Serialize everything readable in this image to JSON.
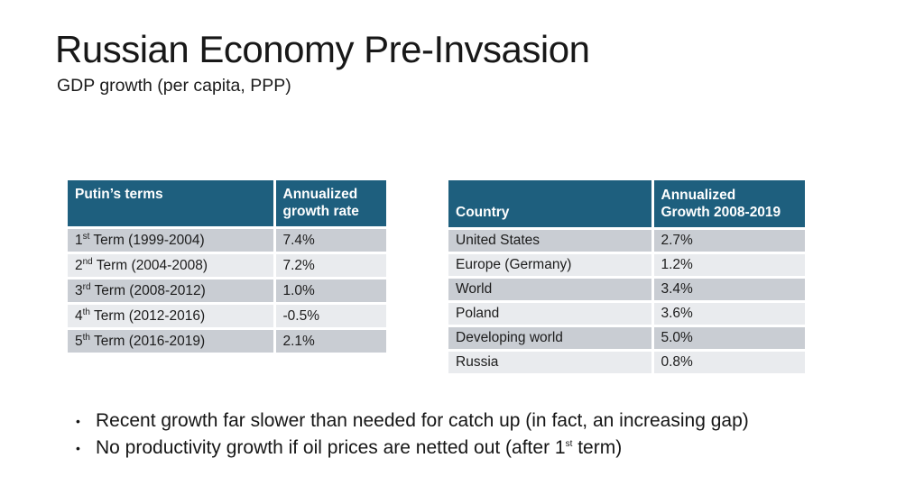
{
  "colors": {
    "header_bg": "#1E5F7E",
    "header_text": "#FFFFFF",
    "row_dark": "#C9CDD3",
    "row_light": "#E9EBEE",
    "text": "#1C1C1C"
  },
  "title": "Russian Economy Pre-Invsasion",
  "subtitle": "GDP growth (per capita, PPP)",
  "terms_table": {
    "header_col1": "Putin’s terms",
    "header_col2_line1": "Annualized",
    "header_col2_line2": "growth rate",
    "rows": [
      {
        "num": "1",
        "ord": "st",
        "rest": " Term (1999-2004)",
        "value": "7.4%"
      },
      {
        "num": "2",
        "ord": "nd",
        "rest": " Term (2004-2008)",
        "value": "7.2%"
      },
      {
        "num": "3",
        "ord": "rd",
        "rest": " Term (2008-2012)",
        "value": "1.0%"
      },
      {
        "num": "4",
        "ord": "th",
        "rest": " Term (2012-2016)",
        "value": "-0.5%"
      },
      {
        "num": "5",
        "ord": "th",
        "rest": " Term (2016-2019)",
        "value": "2.1%"
      }
    ]
  },
  "country_table": {
    "header_col1": "Country",
    "header_col2_line1": "Annualized",
    "header_col2_line2": "Growth 2008-2019",
    "rows": [
      {
        "country": "United States",
        "value": "2.7%"
      },
      {
        "country": "Europe (Germany)",
        "value": "1.2%"
      },
      {
        "country": "World",
        "value": "3.4%"
      },
      {
        "country": "Poland",
        "value": "3.6%"
      },
      {
        "country": "Developing world",
        "value": "5.0%"
      },
      {
        "country": "Russia",
        "value": "0.8%"
      }
    ]
  },
  "bullets": {
    "item1": "Recent growth far slower than needed for catch up (in fact, an increasing gap)",
    "item2_before": "No productivity growth if oil prices are netted out (after 1",
    "item2_sup": "st",
    "item2_after": " term)"
  }
}
